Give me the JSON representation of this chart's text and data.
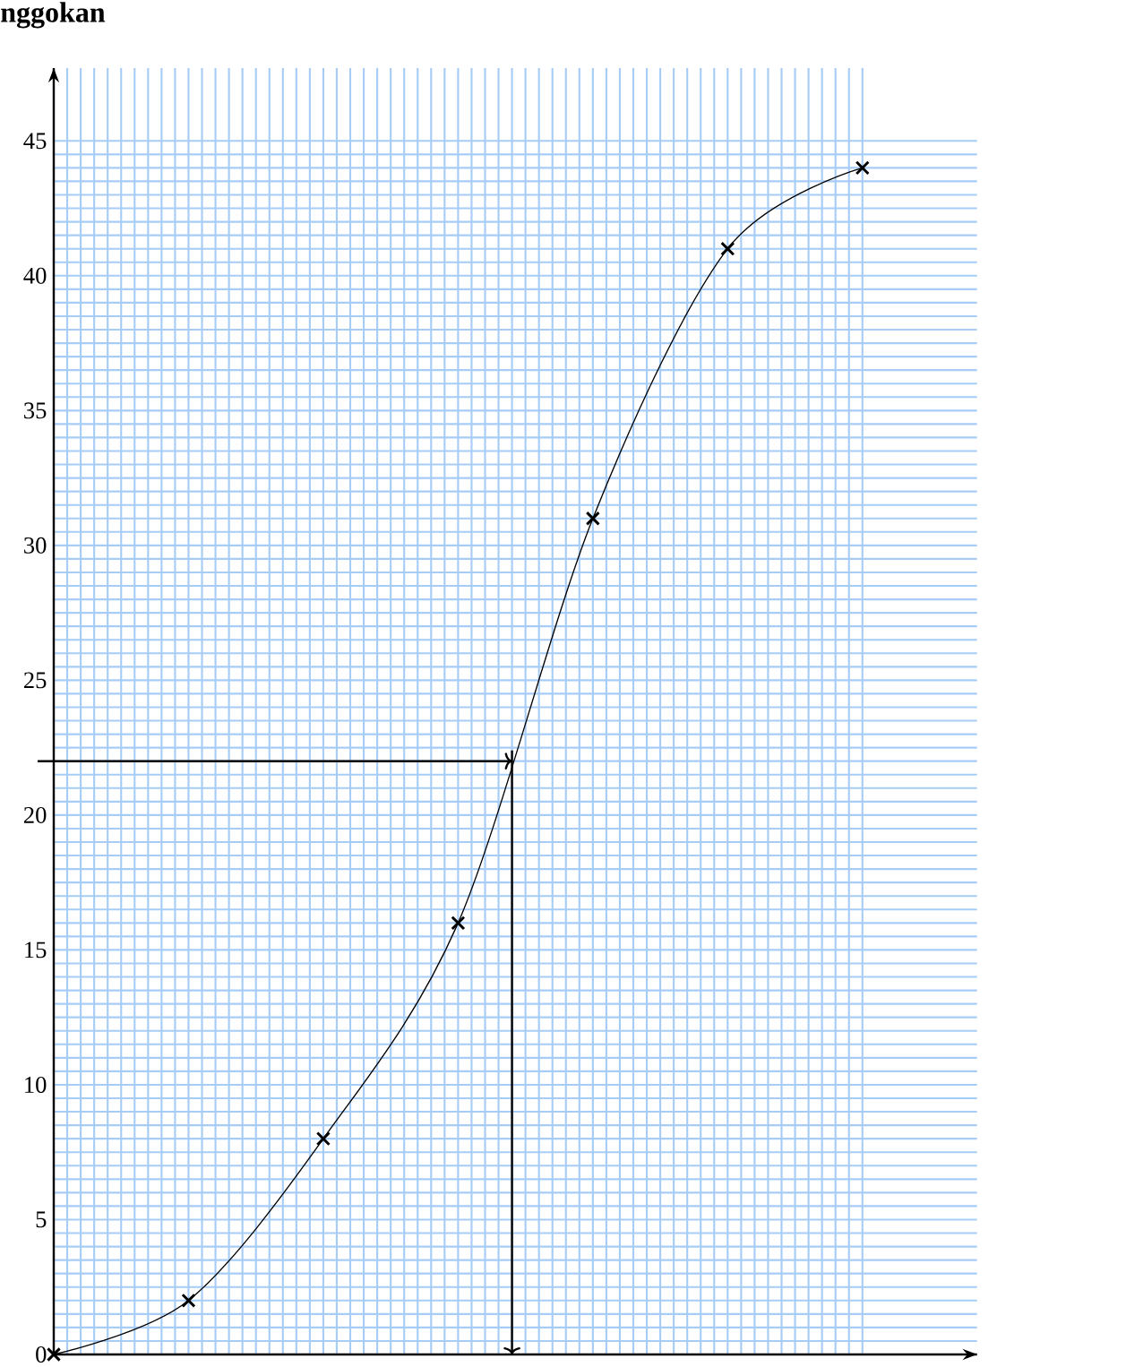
{
  "chart_data": {
    "type": "line",
    "ylabel": "nggokan",
    "categories": [
      null,
      null,
      null,
      null,
      null,
      null,
      null
    ],
    "values": [
      0,
      2,
      8,
      16,
      31,
      41,
      44
    ],
    "color": "#000000",
    "marker": "cross",
    "ylim": [
      0,
      47.7
    ],
    "yticks": [
      0,
      5,
      10,
      15,
      20,
      25,
      30,
      35,
      40,
      45
    ],
    "grid": true,
    "ref_lines": [
      {
        "axis": "y",
        "value": 22,
        "color": "#000000"
      }
    ]
  }
}
